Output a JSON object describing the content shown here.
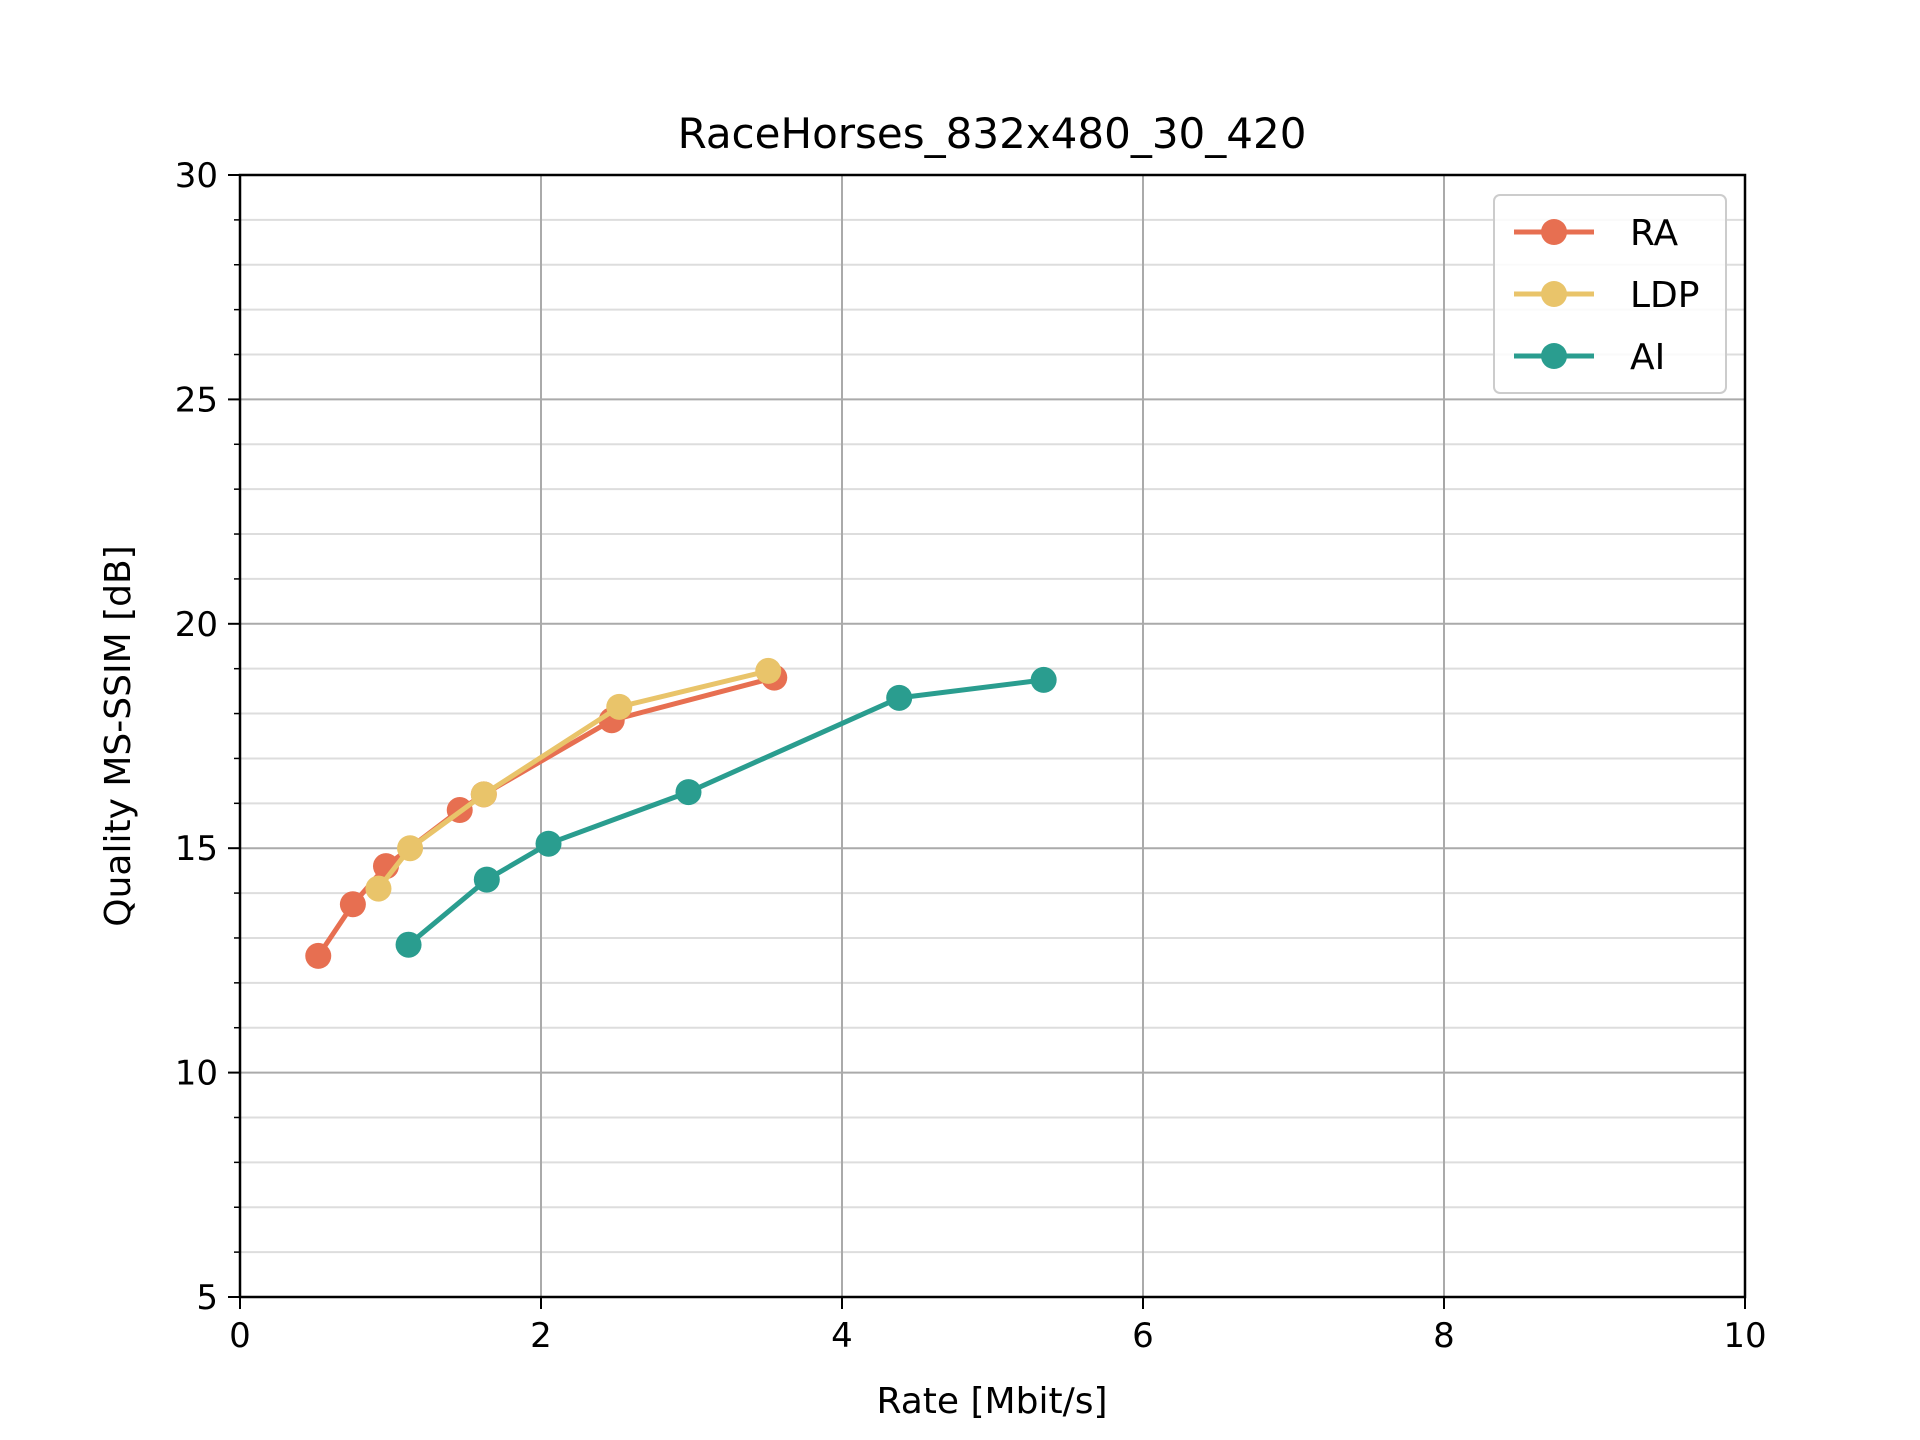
{
  "chart_data": {
    "type": "line",
    "title": "RaceHorses_832x480_30_420",
    "xlabel": "Rate [Mbit/s]",
    "ylabel": "Quality MS-SSIM [dB]",
    "xlim": [
      0,
      10
    ],
    "ylim": [
      5,
      30
    ],
    "xticks": [
      0,
      2,
      4,
      6,
      8,
      10
    ],
    "yticks": [
      5,
      10,
      15,
      20,
      25,
      30
    ],
    "yminor_step": 1,
    "grid": true,
    "legend_position": "top-right",
    "series": [
      {
        "name": "RA",
        "color": "#e76f51",
        "x": [
          0.52,
          0.75,
          0.97,
          1.46,
          1.62,
          2.47,
          3.55
        ],
        "y": [
          12.6,
          13.75,
          14.6,
          15.85,
          16.2,
          17.85,
          18.8
        ]
      },
      {
        "name": "LDP",
        "color": "#e9c46a",
        "x": [
          0.92,
          1.13,
          1.62,
          2.52,
          3.51
        ],
        "y": [
          14.1,
          15.0,
          16.2,
          18.15,
          18.95
        ]
      },
      {
        "name": "AI",
        "color": "#2a9d8f",
        "x": [
          1.12,
          1.64,
          2.05,
          2.98,
          4.38,
          5.34
        ],
        "y": [
          12.85,
          14.3,
          15.1,
          16.25,
          18.35,
          18.75
        ]
      }
    ]
  }
}
